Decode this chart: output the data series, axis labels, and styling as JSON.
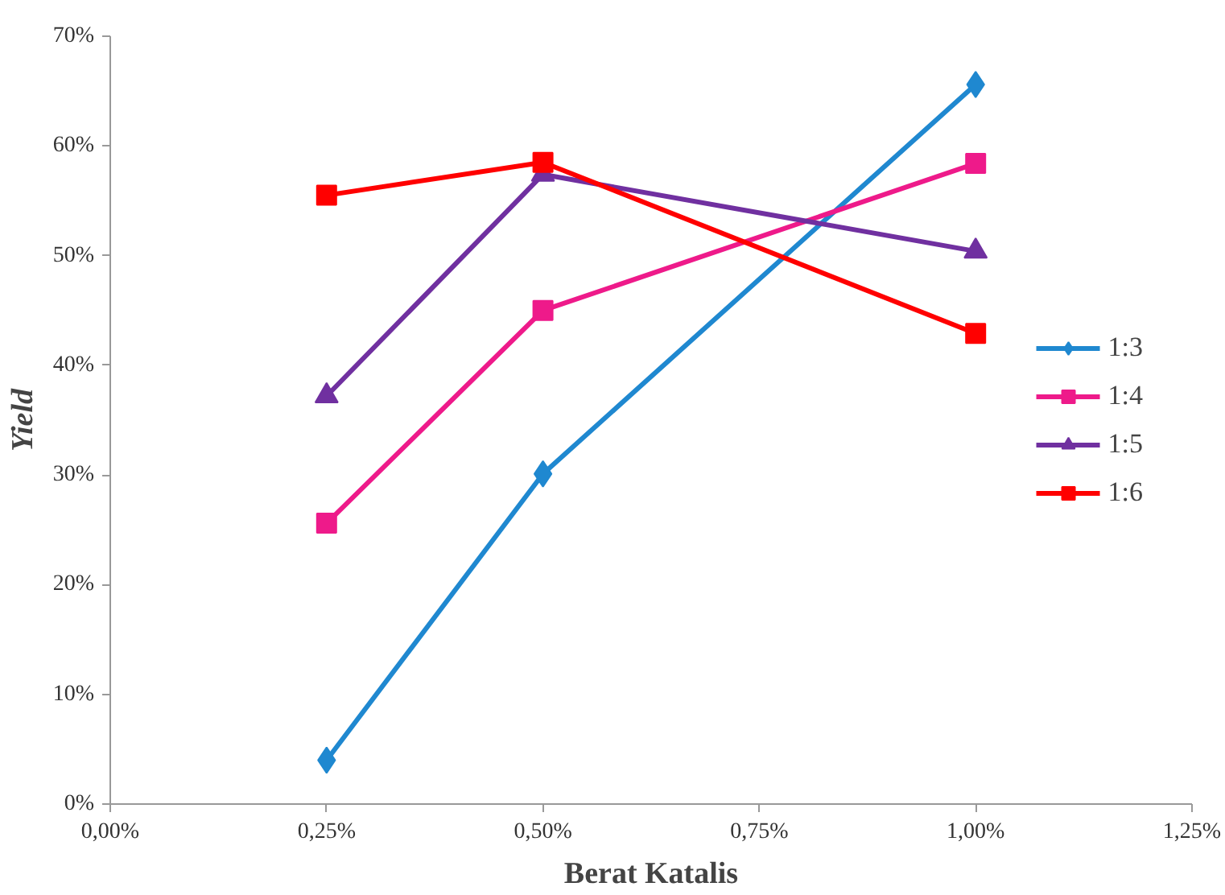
{
  "chart_data": {
    "type": "line",
    "xlabel": "Berat Katalis",
    "ylabel": "Yield",
    "xlim": [
      0,
      1.25
    ],
    "ylim": [
      0,
      70
    ],
    "xticks": [
      {
        "value": 0,
        "label": "0,00%"
      },
      {
        "value": 0.25,
        "label": "0,25%"
      },
      {
        "value": 0.5,
        "label": "0,50%"
      },
      {
        "value": 0.75,
        "label": "0,75%"
      },
      {
        "value": 1.0,
        "label": "1,00%"
      },
      {
        "value": 1.25,
        "label": "1,25%"
      }
    ],
    "yticks": [
      {
        "value": 0,
        "label": "0%"
      },
      {
        "value": 10,
        "label": "10%"
      },
      {
        "value": 20,
        "label": "20%"
      },
      {
        "value": 30,
        "label": "30%"
      },
      {
        "value": 40,
        "label": "40%"
      },
      {
        "value": 50,
        "label": "50%"
      },
      {
        "value": 60,
        "label": "60%"
      },
      {
        "value": 70,
        "label": "70%"
      }
    ],
    "x": [
      0.25,
      0.5,
      1.0
    ],
    "grid": false,
    "legend": "right",
    "series": [
      {
        "name": "1:3",
        "color": "#1f88d0",
        "marker": "diamond",
        "values": [
          4.0,
          30.1,
          65.6
        ]
      },
      {
        "name": "1:4",
        "color": "#ee1a8a",
        "marker": "square",
        "values": [
          25.6,
          45.0,
          58.4
        ]
      },
      {
        "name": "1:5",
        "color": "#7030a0",
        "marker": "triangle",
        "values": [
          37.2,
          57.4,
          50.4
        ]
      },
      {
        "name": "1:6",
        "color": "#ff0000",
        "marker": "square",
        "values": [
          55.5,
          58.5,
          42.9
        ]
      }
    ]
  }
}
